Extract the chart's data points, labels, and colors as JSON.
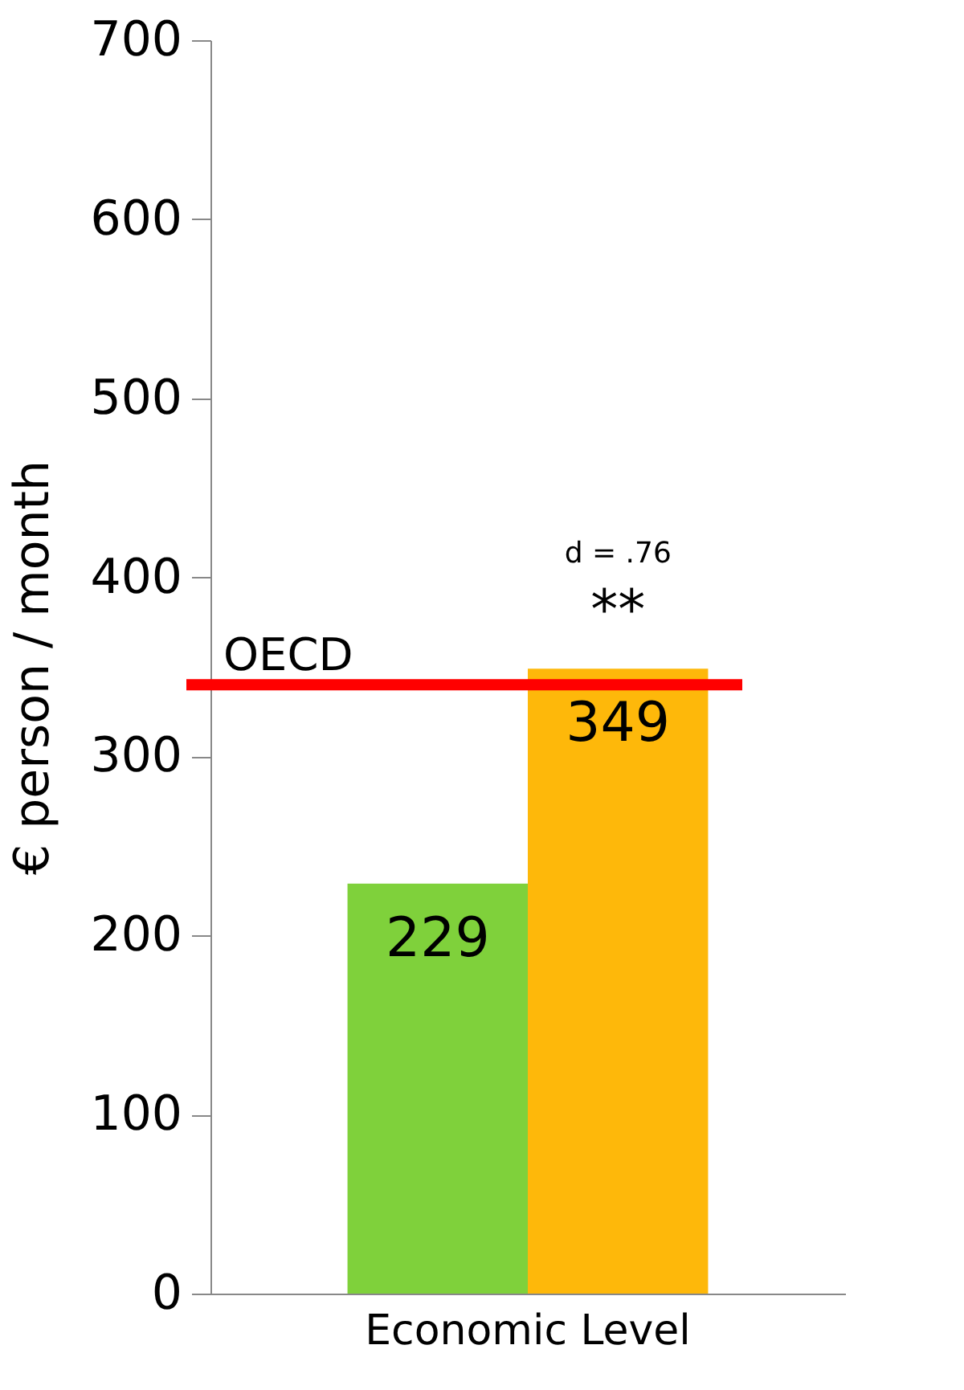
{
  "chart_data": {
    "type": "bar",
    "ylabel": "€ person / month",
    "categories": [
      "Economic Level"
    ],
    "series": [
      {
        "color": "#7fd13b",
        "values": [
          229
        ]
      },
      {
        "color": "#feb80a",
        "values": [
          349
        ]
      }
    ],
    "data_labels": true,
    "ylim": [
      0,
      700
    ],
    "yticks": [
      0,
      100,
      200,
      300,
      400,
      500,
      600,
      700
    ],
    "grid": false,
    "ref_lines": [
      {
        "axis": "y",
        "value": 340,
        "label": "OECD",
        "color": "#ff0000",
        "line_style": "solid"
      }
    ],
    "annotations": [
      "d = .76",
      "**"
    ]
  }
}
